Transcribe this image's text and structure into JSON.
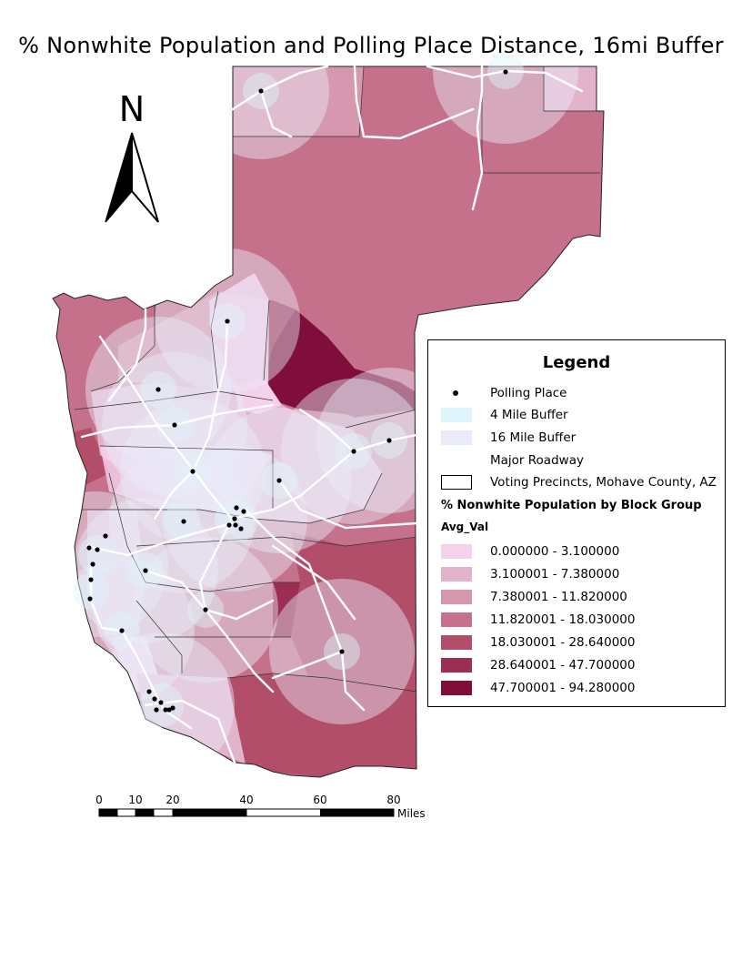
{
  "title": "% Nonwhite Population and Polling Place Distance, 16mi Buffer",
  "north_arrow": {
    "label": "N"
  },
  "legend": {
    "title": "Legend",
    "items": [
      {
        "label": "Polling Place",
        "symbol": "dot",
        "color": "#000000"
      },
      {
        "label": "4 Mile Buffer",
        "symbol": "fill",
        "color": "#dff4fb"
      },
      {
        "label": "16 Mile Buffer",
        "symbol": "fill",
        "color": "#e9ecf8"
      },
      {
        "label": "Major Roadway",
        "symbol": "line",
        "color": "#ffffff"
      },
      {
        "label": "Voting Precincts, Mohave County, AZ",
        "symbol": "outline",
        "color": "#000000"
      }
    ],
    "layer_heading": "% Nonwhite Population by Block Group",
    "field_heading": "Avg_Val",
    "classes": [
      {
        "label": "0.000000 - 3.100000",
        "color": "#f5d2ec"
      },
      {
        "label": "3.100001 - 7.380000",
        "color": "#e3b3cc"
      },
      {
        "label": "7.380001 - 11.820000",
        "color": "#d797ae"
      },
      {
        "label": "11.820001 - 18.030000",
        "color": "#c6718b"
      },
      {
        "label": "18.030001 - 28.640000",
        "color": "#b24d6a"
      },
      {
        "label": "28.640001 - 47.700000",
        "color": "#9b2e52"
      },
      {
        "label": "47.700001 - 94.280000",
        "color": "#7f0f3a"
      }
    ]
  },
  "scale_bar": {
    "ticks": [
      "0",
      "10",
      "20",
      "40",
      "60",
      "80"
    ],
    "unit": "Miles"
  }
}
